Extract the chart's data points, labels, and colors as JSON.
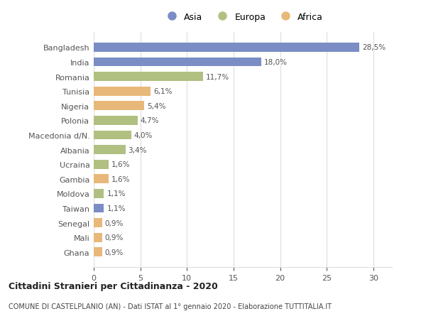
{
  "categories": [
    "Bangladesh",
    "India",
    "Romania",
    "Tunisia",
    "Nigeria",
    "Polonia",
    "Macedonia d/N.",
    "Albania",
    "Ucraina",
    "Gambia",
    "Moldova",
    "Taiwan",
    "Senegal",
    "Mali",
    "Ghana"
  ],
  "values": [
    28.5,
    18.0,
    11.7,
    6.1,
    5.4,
    4.7,
    4.0,
    3.4,
    1.6,
    1.6,
    1.1,
    1.1,
    0.9,
    0.9,
    0.9
  ],
  "labels": [
    "28,5%",
    "18,0%",
    "11,7%",
    "6,1%",
    "5,4%",
    "4,7%",
    "4,0%",
    "3,4%",
    "1,6%",
    "1,6%",
    "1,1%",
    "1,1%",
    "0,9%",
    "0,9%",
    "0,9%"
  ],
  "continents": [
    "Asia",
    "Asia",
    "Europa",
    "Africa",
    "Africa",
    "Europa",
    "Europa",
    "Europa",
    "Europa",
    "Africa",
    "Europa",
    "Asia",
    "Africa",
    "Africa",
    "Africa"
  ],
  "colors": {
    "Asia": "#7a8dc4",
    "Europa": "#b0c080",
    "Africa": "#e8b87a"
  },
  "legend_labels": [
    "Asia",
    "Europa",
    "Africa"
  ],
  "title1": "Cittadini Stranieri per Cittadinanza - 2020",
  "title2": "COMUNE DI CASTELPLANIO (AN) - Dati ISTAT al 1° gennaio 2020 - Elaborazione TUTTITALIA.IT",
  "xlim": [
    0,
    32
  ],
  "xticks": [
    0,
    5,
    10,
    15,
    20,
    25,
    30
  ],
  "background_color": "#ffffff",
  "grid_color": "#dddddd"
}
